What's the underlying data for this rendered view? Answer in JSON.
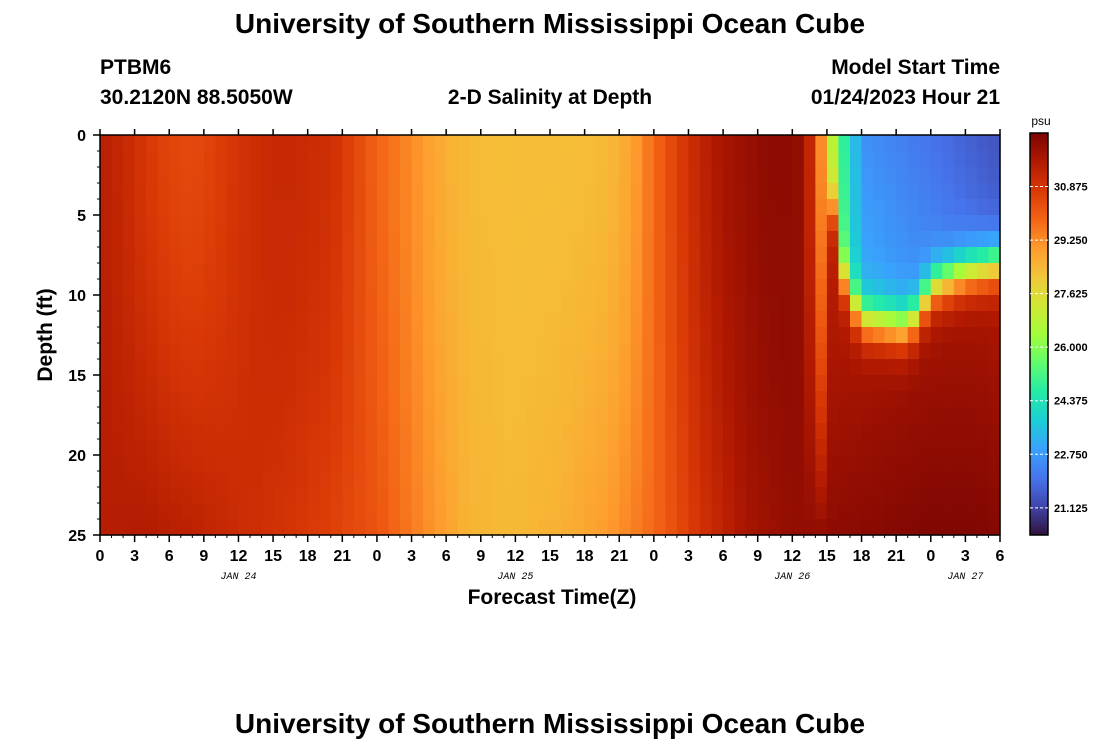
{
  "page": {
    "main_title": "University of Southern Mississippi Ocean Cube",
    "footer_title": "University of Southern Mississippi Ocean Cube",
    "station_id": "PTBM6",
    "station_coords": "30.2120N  88.5050W",
    "start_label": "Model Start Time",
    "start_value": "01/24/2023 Hour 21"
  },
  "chart_data": {
    "type": "heatmap",
    "title": "2-D Salinity at Depth",
    "xlabel": "Forecast Time(Z)",
    "ylabel": "Depth (ft)",
    "ylim": [
      0,
      25
    ],
    "y_ticks": [
      0,
      5,
      10,
      15,
      20,
      25
    ],
    "y_inverted": true,
    "x_range_hours": [
      0,
      78
    ],
    "x_tick_labels": [
      "0",
      "3",
      "6",
      "9",
      "12",
      "15",
      "18",
      "21",
      "0",
      "3",
      "6",
      "9",
      "12",
      "15",
      "18",
      "21",
      "0",
      "3",
      "6",
      "9",
      "12",
      "15",
      "18",
      "21",
      "0",
      "3",
      "6"
    ],
    "date_labels": [
      {
        "label": "JAN 24",
        "hour": 12
      },
      {
        "label": "JAN 25",
        "hour": 36
      },
      {
        "label": "JAN 26",
        "hour": 60
      },
      {
        "label": "JAN 27",
        "hour": 75
      }
    ],
    "colorbar": {
      "unit": "psu",
      "min": 20.3,
      "max": 32.5,
      "ticks": [
        "30.875",
        "29.250",
        "27.625",
        "26.000",
        "24.375",
        "22.750",
        "21.125"
      ],
      "stops": [
        "#30123b",
        "#4145ab",
        "#4675ed",
        "#39a2fc",
        "#1bcfd4",
        "#24eca6",
        "#61fc6c",
        "#a4fc3b",
        "#d1e834",
        "#f3c63a",
        "#fe9b2d",
        "#f36315",
        "#d93806",
        "#b11901",
        "#7a0403"
      ]
    },
    "surface_profile": [
      {
        "h": 0,
        "v": 31.5
      },
      {
        "h": 2,
        "v": 31.2
      },
      {
        "h": 4,
        "v": 30.8
      },
      {
        "h": 6,
        "v": 30.5
      },
      {
        "h": 8,
        "v": 30.4
      },
      {
        "h": 10,
        "v": 30.6
      },
      {
        "h": 12,
        "v": 30.9
      },
      {
        "h": 14,
        "v": 31.1
      },
      {
        "h": 16,
        "v": 31.2
      },
      {
        "h": 18,
        "v": 31.1
      },
      {
        "h": 20,
        "v": 31.0
      },
      {
        "h": 22,
        "v": 30.5
      },
      {
        "h": 24,
        "v": 29.9
      },
      {
        "h": 26,
        "v": 29.5
      },
      {
        "h": 28,
        "v": 29.0
      },
      {
        "h": 30,
        "v": 28.6
      },
      {
        "h": 32,
        "v": 28.4
      },
      {
        "h": 36,
        "v": 28.3
      },
      {
        "h": 40,
        "v": 28.3
      },
      {
        "h": 44,
        "v": 28.4
      },
      {
        "h": 46,
        "v": 28.8
      },
      {
        "h": 48,
        "v": 29.8
      },
      {
        "h": 50,
        "v": 30.6
      },
      {
        "h": 52,
        "v": 31.3
      },
      {
        "h": 54,
        "v": 31.8
      },
      {
        "h": 56,
        "v": 32.0
      },
      {
        "h": 58,
        "v": 32.2
      },
      {
        "h": 60,
        "v": 32.2
      },
      {
        "h": 61,
        "v": 32.0
      },
      {
        "h": 62,
        "v": 30.5
      },
      {
        "h": 63,
        "v": 28.0
      },
      {
        "h": 64,
        "v": 25.5
      },
      {
        "h": 66,
        "v": 22.6
      },
      {
        "h": 70,
        "v": 22.2
      },
      {
        "h": 74,
        "v": 21.8
      },
      {
        "h": 78,
        "v": 21.4
      }
    ],
    "bottom_profile": [
      {
        "h": 0,
        "v": 31.5
      },
      {
        "h": 4,
        "v": 31.6
      },
      {
        "h": 8,
        "v": 31.4
      },
      {
        "h": 12,
        "v": 31.1
      },
      {
        "h": 16,
        "v": 30.9
      },
      {
        "h": 20,
        "v": 30.6
      },
      {
        "h": 24,
        "v": 30.2
      },
      {
        "h": 28,
        "v": 29.3
      },
      {
        "h": 32,
        "v": 28.5
      },
      {
        "h": 36,
        "v": 28.4
      },
      {
        "h": 40,
        "v": 28.6
      },
      {
        "h": 44,
        "v": 29.0
      },
      {
        "h": 48,
        "v": 29.8
      },
      {
        "h": 52,
        "v": 30.9
      },
      {
        "h": 56,
        "v": 31.8
      },
      {
        "h": 60,
        "v": 32.1
      },
      {
        "h": 64,
        "v": 32.2
      },
      {
        "h": 68,
        "v": 32.3
      },
      {
        "h": 72,
        "v": 32.4
      },
      {
        "h": 76,
        "v": 32.4
      },
      {
        "h": 78,
        "v": 32.3
      }
    ],
    "lens_pycnocline_ft": [
      {
        "h": 63,
        "d": 1
      },
      {
        "h": 64,
        "d": 8
      },
      {
        "h": 65,
        "d": 10
      },
      {
        "h": 66,
        "d": 11.5
      },
      {
        "h": 70,
        "d": 12
      },
      {
        "h": 71,
        "d": 11
      },
      {
        "h": 72,
        "d": 9.5
      },
      {
        "h": 75,
        "d": 8.5
      },
      {
        "h": 78,
        "d": 8
      }
    ]
  }
}
